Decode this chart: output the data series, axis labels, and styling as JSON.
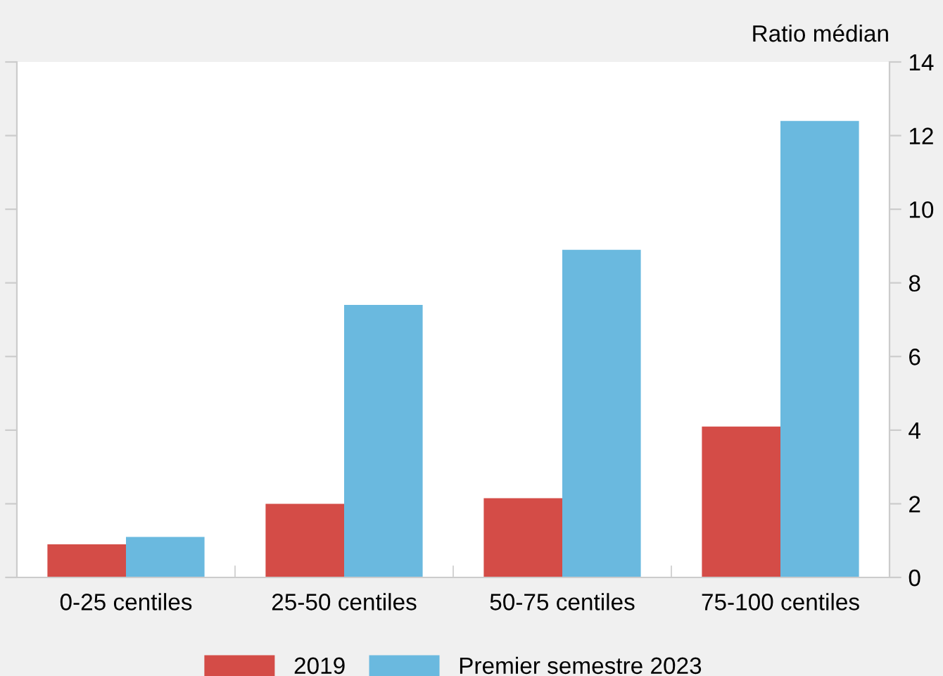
{
  "chart_data": {
    "type": "bar",
    "ylabel": "Ratio médian",
    "categories": [
      "0-25 centiles",
      "25-50 centiles",
      "50-75 centiles",
      "75-100 centiles"
    ],
    "series": [
      {
        "name": "2019",
        "color": "#d44c47",
        "values": [
          0.9,
          2.0,
          2.15,
          4.1
        ]
      },
      {
        "name": "Premier semestre 2023",
        "color": "#6ab9df",
        "values": [
          1.1,
          7.4,
          8.9,
          12.4
        ]
      }
    ],
    "ylim": [
      0,
      14
    ],
    "yticks": [
      0,
      2,
      4,
      6,
      8,
      10,
      12,
      14
    ],
    "grid": false,
    "legend": "bottom"
  }
}
